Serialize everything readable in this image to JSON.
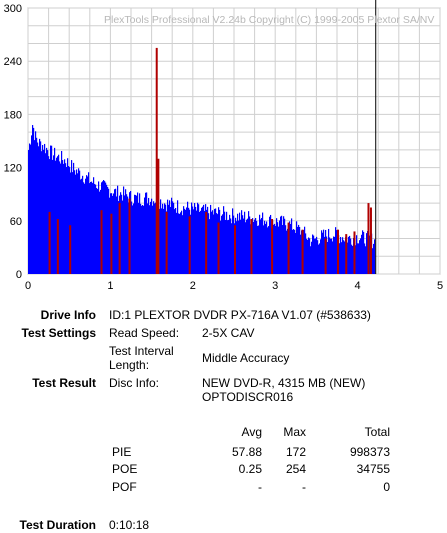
{
  "chart_data": {
    "type": "bar",
    "watermark": "PlexTools Professional V2.24b Copyright (C) 1999-2005 Plextor SA/NV",
    "xlim": [
      0,
      5
    ],
    "ylim": [
      0,
      300
    ],
    "x_ticks": [
      "0",
      "1",
      "2",
      "3",
      "4",
      "5"
    ],
    "y_ticks": [
      "0",
      "60",
      "120",
      "180",
      "240",
      "300"
    ],
    "grid": true,
    "end_marker_x": 4.22,
    "series": [
      {
        "color": "#0000ff",
        "points": [
          [
            0.0,
            140
          ],
          [
            0.02,
            150
          ],
          [
            0.05,
            170
          ],
          [
            0.08,
            155
          ],
          [
            0.12,
            148
          ],
          [
            0.18,
            145
          ],
          [
            0.25,
            138
          ],
          [
            0.35,
            132
          ],
          [
            0.45,
            128
          ],
          [
            0.55,
            118
          ],
          [
            0.65,
            112
          ],
          [
            0.75,
            105
          ],
          [
            0.85,
            100
          ],
          [
            0.95,
            96
          ],
          [
            1.05,
            92
          ],
          [
            1.15,
            90
          ],
          [
            1.25,
            86
          ],
          [
            1.35,
            85
          ],
          [
            1.45,
            86
          ],
          [
            1.55,
            84
          ],
          [
            1.65,
            80
          ],
          [
            1.75,
            78
          ],
          [
            1.85,
            75
          ],
          [
            1.95,
            74
          ],
          [
            2.05,
            72
          ],
          [
            2.15,
            70
          ],
          [
            2.25,
            69
          ],
          [
            2.35,
            68
          ],
          [
            2.45,
            66
          ],
          [
            2.55,
            65
          ],
          [
            2.65,
            64
          ],
          [
            2.75,
            63
          ],
          [
            2.85,
            62
          ],
          [
            2.95,
            60
          ],
          [
            3.05,
            58
          ],
          [
            3.15,
            56
          ],
          [
            3.25,
            52
          ],
          [
            3.35,
            45
          ],
          [
            3.42,
            38
          ],
          [
            3.5,
            40
          ],
          [
            3.6,
            43
          ],
          [
            3.7,
            45
          ],
          [
            3.8,
            42
          ],
          [
            3.9,
            40
          ],
          [
            4.0,
            42
          ],
          [
            4.1,
            40
          ],
          [
            4.2,
            37
          ]
        ]
      },
      {
        "color": "#b00000",
        "bars": [
          [
            0.25,
            70
          ],
          [
            0.35,
            62
          ],
          [
            0.5,
            55
          ],
          [
            0.88,
            72
          ],
          [
            1.0,
            68
          ],
          [
            1.1,
            80
          ],
          [
            1.22,
            85
          ],
          [
            1.55,
            255
          ],
          [
            1.57,
            130
          ],
          [
            1.67,
            70
          ],
          [
            1.95,
            65
          ],
          [
            2.15,
            70
          ],
          [
            2.3,
            58
          ],
          [
            2.5,
            55
          ],
          [
            2.7,
            62
          ],
          [
            2.95,
            62
          ],
          [
            3.15,
            58
          ],
          [
            3.32,
            50
          ],
          [
            3.6,
            40
          ],
          [
            3.75,
            50
          ],
          [
            3.85,
            45
          ],
          [
            3.95,
            48
          ],
          [
            4.12,
            80
          ],
          [
            4.15,
            75
          ]
        ]
      }
    ]
  },
  "info": {
    "drive_label": "Drive Info",
    "drive_value": "ID:1 PLEXTOR DVDR PX-716A V1.07 (#538633)",
    "settings_label": "Test Settings",
    "read_speed_label": "Read Speed:",
    "read_speed_value": "2-5X CAV",
    "interval_label_1": "Test Interval",
    "interval_label_2": "Length:",
    "interval_value": "Middle Accuracy",
    "result_label": "Test Result",
    "disc_label": "Disc Info:",
    "disc_value_1": "NEW DVD-R, 4315 MB (NEW)",
    "disc_value_2": "OPTODISCR016",
    "duration_label": "Test Duration",
    "duration_value": "0:10:18"
  },
  "stats": {
    "headers": [
      "Avg",
      "Max",
      "Total"
    ],
    "rows": [
      {
        "name": "PIE",
        "avg": "57.88",
        "max": "172",
        "total": "998373"
      },
      {
        "name": "POE",
        "avg": "0.25",
        "max": "254",
        "total": "34755"
      },
      {
        "name": "POF",
        "avg": "-",
        "max": "-",
        "total": "0"
      }
    ]
  }
}
